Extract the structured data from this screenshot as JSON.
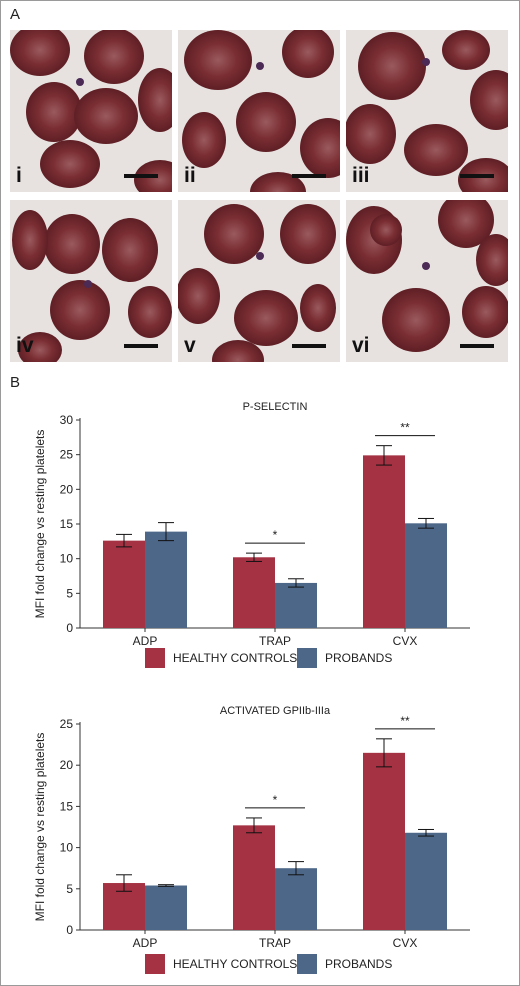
{
  "panel_a": {
    "letter": "A",
    "images": [
      {
        "label": "i"
      },
      {
        "label": "ii"
      },
      {
        "label": "iii"
      },
      {
        "label": "iv"
      },
      {
        "label": "v"
      },
      {
        "label": "vi"
      }
    ]
  },
  "panel_b": {
    "letter": "B"
  },
  "colors": {
    "healthy": "#a43243",
    "probands": "#4d6789",
    "rbc": "#7a2e33",
    "background": "#e7e1df"
  },
  "chart_data": [
    {
      "type": "bar",
      "title": "P-SELECTIN",
      "ylabel": "MFI fold change vs resting platelets",
      "xlabel": "",
      "categories": [
        "ADP",
        "TRAP",
        "CVX"
      ],
      "ylim": [
        0,
        30
      ],
      "yticks": [
        0,
        5,
        10,
        15,
        20,
        25,
        30
      ],
      "series": [
        {
          "name": "HEALTHY CONTROLS",
          "values": [
            12.6,
            10.2,
            24.9
          ],
          "errors": [
            0.9,
            0.6,
            1.4
          ]
        },
        {
          "name": "PROBANDS",
          "values": [
            13.9,
            6.5,
            15.1
          ],
          "errors": [
            1.3,
            0.6,
            0.7
          ]
        }
      ],
      "annotations": [
        {
          "category": "TRAP",
          "text": "*"
        },
        {
          "category": "CVX",
          "text": "**"
        }
      ],
      "legend": "bottom"
    },
    {
      "type": "bar",
      "title": "ACTIVATED GPIIb-IIIa",
      "ylabel": "MFI fold change vs resting platelets",
      "xlabel": "",
      "categories": [
        "ADP",
        "TRAP",
        "CVX"
      ],
      "ylim": [
        0,
        25
      ],
      "yticks": [
        0,
        5,
        10,
        15,
        20,
        25
      ],
      "series": [
        {
          "name": "HEALTHY CONTROLS",
          "values": [
            5.7,
            12.7,
            21.5
          ],
          "errors": [
            1.0,
            0.9,
            1.7
          ]
        },
        {
          "name": "PROBANDS",
          "values": [
            5.4,
            7.5,
            11.8
          ],
          "errors": [
            0.1,
            0.8,
            0.4
          ]
        }
      ],
      "annotations": [
        {
          "category": "TRAP",
          "text": "*"
        },
        {
          "category": "CVX",
          "text": "**"
        }
      ],
      "legend": "bottom"
    }
  ]
}
